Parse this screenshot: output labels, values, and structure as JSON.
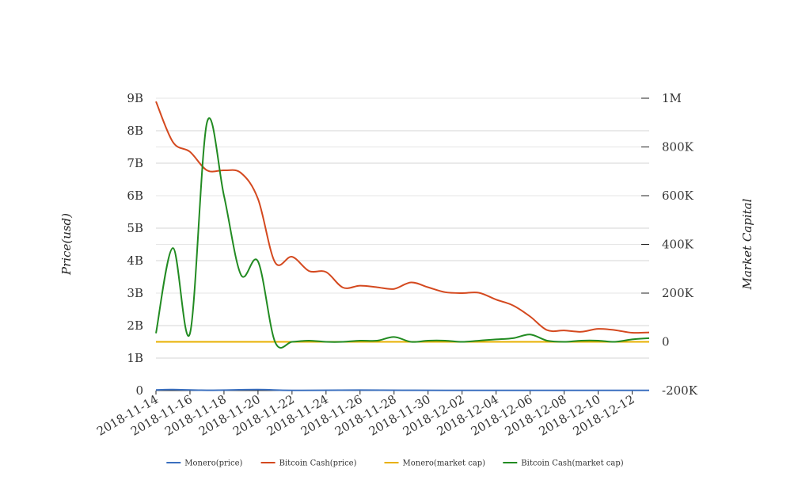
{
  "chart_data": {
    "type": "line",
    "title": "",
    "y_left_label": "Price(usd)",
    "y_right_label": "Market Capital",
    "x_tick_labels": [
      "2018-11-14",
      "2018-11-16",
      "2018-11-18",
      "2018-11-20",
      "2018-11-22",
      "2018-11-24",
      "2018-11-26",
      "2018-11-28",
      "2018-11-30",
      "2018-12-02",
      "2018-12-04",
      "2018-12-06",
      "2018-12-08",
      "2018-12-10",
      "2018-12-12"
    ],
    "y_left_ticks": [
      {
        "value": 0,
        "label": "0"
      },
      {
        "value": 1000000000,
        "label": "1B"
      },
      {
        "value": 2000000000,
        "label": "2B"
      },
      {
        "value": 3000000000,
        "label": "3B"
      },
      {
        "value": 4000000000,
        "label": "4B"
      },
      {
        "value": 5000000000,
        "label": "5B"
      },
      {
        "value": 6000000000,
        "label": "6B"
      },
      {
        "value": 7000000000,
        "label": "7B"
      },
      {
        "value": 8000000000,
        "label": "8B"
      },
      {
        "value": 9000000000,
        "label": "9B"
      }
    ],
    "y_right_ticks": [
      {
        "value": -200000,
        "label": "-200K"
      },
      {
        "value": 0,
        "label": "0"
      },
      {
        "value": 200000,
        "label": "200K"
      },
      {
        "value": 400000,
        "label": "400K"
      },
      {
        "value": 600000,
        "label": "600K"
      },
      {
        "value": 800000,
        "label": "800K"
      },
      {
        "value": 1000000,
        "label": "1M"
      }
    ],
    "y_left_range": [
      0,
      9000000000
    ],
    "y_right_range": [
      -200000,
      1000000
    ],
    "grid": true,
    "legend_position": "bottom",
    "x_start": "2018-11-14",
    "x_end": "2018-12-13",
    "series": [
      {
        "name": "Monero(price)",
        "axis": "left",
        "color": "#3a6fbf",
        "x": [
          "2018-11-14",
          "2018-11-15",
          "2018-11-17",
          "2018-11-20",
          "2018-11-22",
          "2018-11-26",
          "2018-12-01",
          "2018-12-06",
          "2018-12-10",
          "2018-12-13"
        ],
        "values": [
          20000000,
          30000000,
          10000000,
          30000000,
          5000000,
          15000000,
          5000000,
          8000000,
          5000000,
          5000000
        ]
      },
      {
        "name": "Bitcoin Cash(price)",
        "axis": "left",
        "color": "#d4491f",
        "x": [
          "2018-11-14",
          "2018-11-15",
          "2018-11-16",
          "2018-11-17",
          "2018-11-18",
          "2018-11-19",
          "2018-11-20",
          "2018-11-21",
          "2018-11-22",
          "2018-11-23",
          "2018-11-24",
          "2018-11-25",
          "2018-11-26",
          "2018-11-27",
          "2018-11-28",
          "2018-11-29",
          "2018-11-30",
          "2018-12-01",
          "2018-12-02",
          "2018-12-03",
          "2018-12-04",
          "2018-12-05",
          "2018-12-06",
          "2018-12-07",
          "2018-12-08",
          "2018-12-09",
          "2018-12-10",
          "2018-12-11",
          "2018-12-12",
          "2018-12-13"
        ],
        "values": [
          8900000000,
          7650000000,
          7350000000,
          6780000000,
          6780000000,
          6700000000,
          5900000000,
          3950000000,
          4120000000,
          3680000000,
          3650000000,
          3170000000,
          3230000000,
          3180000000,
          3130000000,
          3330000000,
          3180000000,
          3030000000,
          3000000000,
          3010000000,
          2800000000,
          2620000000,
          2280000000,
          1860000000,
          1850000000,
          1810000000,
          1900000000,
          1860000000,
          1780000000,
          1790000000
        ]
      },
      {
        "name": "Monero(market cap)",
        "axis": "right",
        "color": "#e8b000",
        "x": [
          "2018-11-14",
          "2018-12-13"
        ],
        "values": [
          0,
          0
        ]
      },
      {
        "name": "Bitcoin Cash(market cap)",
        "axis": "right",
        "color": "#228b22",
        "x": [
          "2018-11-14",
          "2018-11-15",
          "2018-11-16",
          "2018-11-17",
          "2018-11-18",
          "2018-11-19",
          "2018-11-20",
          "2018-11-21",
          "2018-11-22",
          "2018-11-23",
          "2018-11-24",
          "2018-11-25",
          "2018-11-26",
          "2018-11-27",
          "2018-11-28",
          "2018-11-29",
          "2018-11-30",
          "2018-12-01",
          "2018-12-02",
          "2018-12-03",
          "2018-12-04",
          "2018-12-05",
          "2018-12-06",
          "2018-12-07",
          "2018-12-08",
          "2018-12-09",
          "2018-12-10",
          "2018-12-11",
          "2018-12-12",
          "2018-12-13"
        ],
        "values": [
          35000,
          385000,
          35000,
          900000,
          600000,
          275000,
          330000,
          0,
          0,
          5000,
          0,
          0,
          5000,
          5000,
          20000,
          0,
          5000,
          5000,
          0,
          5000,
          10000,
          15000,
          30000,
          5000,
          0,
          5000,
          5000,
          0,
          10000,
          15000
        ]
      }
    ]
  }
}
